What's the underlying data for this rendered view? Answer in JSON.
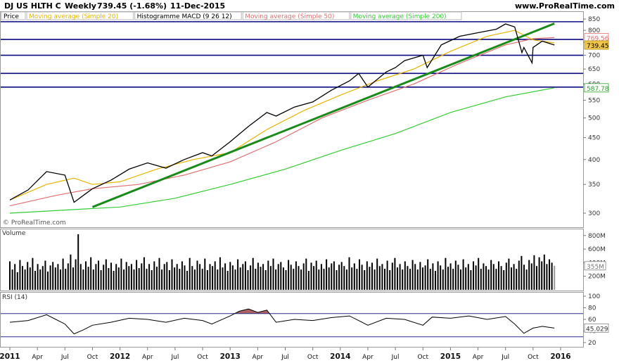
{
  "header": {
    "instrument": "DJ US HLTH C",
    "period": "Weekly",
    "last": "739.45 (-1.68%)",
    "date": "11-Dec-2015",
    "site": "www.ProRealTime.com"
  },
  "legend": [
    {
      "label": "Price",
      "color": "#000000"
    },
    {
      "label": "Moving average (Simple 20)",
      "color": "#e8b400"
    },
    {
      "label": "Histogramme MACD (9 26 12)",
      "color": "#000000"
    },
    {
      "label": "Moving average (Simple 50)",
      "color": "#e07070"
    },
    {
      "label": "Moving average (Simple 200)",
      "color": "#33cc33"
    }
  ],
  "watermark": "© ProRealTime.com",
  "panels": {
    "volume_label": "Volume",
    "rsi_label": "RSI (14)"
  },
  "colors": {
    "price": "#000000",
    "ma20": "#e8b400",
    "ma50": "#e07070",
    "ma200": "#33cc33",
    "trendline": "#1a8a1a",
    "hlines": "#0a0a80",
    "volume": "#000000",
    "rsi": "#000000",
    "rsi_fill": "#a04848"
  },
  "chart_data": [
    {
      "type": "line",
      "name": "price",
      "scale": "log",
      "ylim": [
        290,
        860
      ],
      "price_ticks": [
        300,
        350,
        400,
        450,
        500,
        550,
        600,
        650,
        700,
        750,
        800,
        850
      ],
      "x_ticks": [
        "2011",
        "Apr",
        "Jul",
        "Oct",
        "2012",
        "Apr",
        "Jul",
        "Oct",
        "2013",
        "Apr",
        "Jul",
        "Oct",
        "2014",
        "Apr",
        "Jul",
        "Oct",
        "2015",
        "Apr",
        "Jul",
        "Oct",
        "2016"
      ],
      "x_bold": [
        "2011",
        "2012",
        "2013",
        "2014",
        "2015",
        "2016"
      ],
      "path": [
        {
          "date": "2011-01",
          "value": 322
        },
        {
          "date": "2011-03",
          "value": 340
        },
        {
          "date": "2011-05",
          "value": 375
        },
        {
          "date": "2011-07",
          "value": 368
        },
        {
          "date": "2011-08",
          "value": 318
        },
        {
          "date": "2011-09",
          "value": 330
        },
        {
          "date": "2011-10",
          "value": 342
        },
        {
          "date": "2011-12",
          "value": 358
        },
        {
          "date": "2012-02",
          "value": 380
        },
        {
          "date": "2012-04",
          "value": 393
        },
        {
          "date": "2012-06",
          "value": 382
        },
        {
          "date": "2012-08",
          "value": 400
        },
        {
          "date": "2012-10",
          "value": 415
        },
        {
          "date": "2012-11",
          "value": 408
        },
        {
          "date": "2013-01",
          "value": 440
        },
        {
          "date": "2013-03",
          "value": 478
        },
        {
          "date": "2013-05",
          "value": 515
        },
        {
          "date": "2013-06",
          "value": 505
        },
        {
          "date": "2013-08",
          "value": 530
        },
        {
          "date": "2013-10",
          "value": 545
        },
        {
          "date": "2013-12",
          "value": 580
        },
        {
          "date": "2014-02",
          "value": 610
        },
        {
          "date": "2014-03",
          "value": 635
        },
        {
          "date": "2014-04",
          "value": 590
        },
        {
          "date": "2014-06",
          "value": 640
        },
        {
          "date": "2014-07",
          "value": 655
        },
        {
          "date": "2014-08",
          "value": 680
        },
        {
          "date": "2014-10",
          "value": 700
        },
        {
          "date": "2014-10-15",
          "value": 655
        },
        {
          "date": "2014-12",
          "value": 740
        },
        {
          "date": "2015-02",
          "value": 775
        },
        {
          "date": "2015-04",
          "value": 790
        },
        {
          "date": "2015-06",
          "value": 805
        },
        {
          "date": "2015-07",
          "value": 828
        },
        {
          "date": "2015-08",
          "value": 815
        },
        {
          "date": "2015-08-25",
          "value": 710
        },
        {
          "date": "2015-09",
          "value": 730
        },
        {
          "date": "2015-09-28",
          "value": 672
        },
        {
          "date": "2015-10",
          "value": 730
        },
        {
          "date": "2015-11",
          "value": 755
        },
        {
          "date": "2015-12-11",
          "value": 739.45
        }
      ],
      "ma20_path": [
        {
          "date": "2011-01",
          "value": 322
        },
        {
          "date": "2011-05",
          "value": 350
        },
        {
          "date": "2011-08",
          "value": 362
        },
        {
          "date": "2011-10",
          "value": 350
        },
        {
          "date": "2012-01",
          "value": 355
        },
        {
          "date": "2012-05",
          "value": 380
        },
        {
          "date": "2012-09",
          "value": 400
        },
        {
          "date": "2013-01",
          "value": 415
        },
        {
          "date": "2013-05",
          "value": 470
        },
        {
          "date": "2013-09",
          "value": 520
        },
        {
          "date": "2014-01",
          "value": 565
        },
        {
          "date": "2014-05",
          "value": 610
        },
        {
          "date": "2014-09",
          "value": 650
        },
        {
          "date": "2015-01",
          "value": 715
        },
        {
          "date": "2015-05",
          "value": 775
        },
        {
          "date": "2015-08",
          "value": 800
        },
        {
          "date": "2015-10",
          "value": 760
        },
        {
          "date": "2015-12-11",
          "value": 748
        }
      ],
      "ma50_path": [
        {
          "date": "2011-01",
          "value": 312
        },
        {
          "date": "2011-06",
          "value": 330
        },
        {
          "date": "2011-10",
          "value": 342
        },
        {
          "date": "2012-03",
          "value": 350
        },
        {
          "date": "2012-08",
          "value": 368
        },
        {
          "date": "2013-01",
          "value": 395
        },
        {
          "date": "2013-06",
          "value": 440
        },
        {
          "date": "2013-11",
          "value": 500
        },
        {
          "date": "2014-04",
          "value": 550
        },
        {
          "date": "2014-09",
          "value": 600
        },
        {
          "date": "2015-02",
          "value": 670
        },
        {
          "date": "2015-07",
          "value": 740
        },
        {
          "date": "2015-10",
          "value": 765
        },
        {
          "date": "2015-12-11",
          "value": 769.56
        }
      ],
      "ma200_path": [
        {
          "date": "2011-01",
          "value": 300
        },
        {
          "date": "2011-07",
          "value": 305
        },
        {
          "date": "2012-01",
          "value": 310
        },
        {
          "date": "2012-07",
          "value": 325
        },
        {
          "date": "2013-01",
          "value": 350
        },
        {
          "date": "2013-07",
          "value": 380
        },
        {
          "date": "2014-01",
          "value": 420
        },
        {
          "date": "2014-07",
          "value": 460
        },
        {
          "date": "2015-01",
          "value": 515
        },
        {
          "date": "2015-07",
          "value": 560
        },
        {
          "date": "2015-12-11",
          "value": 587.78
        }
      ],
      "trendline": [
        {
          "date": "2011-10",
          "value": 310
        },
        {
          "date": "2015-12-11",
          "value": 830
        }
      ],
      "horizontal_levels": [
        838,
        762,
        700,
        635,
        590
      ],
      "value_labels": [
        {
          "text": "769.56",
          "value": 769.56,
          "series": "ma50"
        },
        {
          "text": "739.45",
          "value": 739.45,
          "series": "price"
        },
        {
          "text": "587.78",
          "value": 587.78,
          "series": "ma200"
        }
      ]
    },
    {
      "type": "bar",
      "name": "volume",
      "ylim": [
        0,
        850
      ],
      "y_ticks": [
        "800M",
        "600M",
        "400M",
        "200M"
      ],
      "last_label": "355M",
      "last_value": 355,
      "start_date": "2011-01",
      "end_date": "2015-12-11",
      "values": [
        420,
        300,
        380,
        260,
        440,
        350,
        300,
        410,
        330,
        470,
        280,
        380,
        300,
        350,
        430,
        270,
        360,
        410,
        330,
        380,
        300,
        460,
        310,
        390,
        520,
        330,
        450,
        820,
        380,
        300,
        420,
        340,
        480,
        300,
        380,
        430,
        290,
        370,
        450,
        320,
        400,
        280,
        380,
        330,
        460,
        300,
        410,
        350,
        380,
        300,
        440,
        320,
        390,
        480,
        310,
        380,
        290,
        420,
        340,
        470,
        300,
        380,
        410,
        290,
        450,
        330,
        380,
        310,
        420,
        360,
        280,
        470,
        350,
        300,
        430,
        380,
        310,
        460,
        290,
        380,
        350,
        420,
        300,
        480,
        330,
        390,
        280,
        410,
        360,
        300,
        450,
        330,
        380,
        420,
        290,
        360,
        470,
        310,
        400,
        340,
        380,
        290,
        430,
        350,
        460,
        300,
        380,
        410,
        330,
        290,
        440,
        370,
        310,
        420,
        350,
        300,
        390,
        460,
        280,
        400,
        350,
        430,
        300,
        380,
        310,
        450,
        330,
        390,
        420,
        290,
        370,
        410,
        350,
        300,
        480,
        330,
        390,
        310,
        450,
        370,
        290,
        420,
        340,
        400,
        300,
        460,
        350,
        380,
        310,
        430,
        290,
        400,
        470,
        330,
        380,
        300,
        420,
        350,
        310,
        440,
        380,
        300,
        410,
        330,
        360,
        450,
        310,
        390,
        280,
        420,
        360,
        300,
        470,
        340,
        390,
        310,
        430,
        370,
        300,
        450,
        330,
        380,
        290,
        420,
        360,
        470,
        310,
        390,
        350,
        300,
        440,
        380,
        310,
        420,
        350,
        290,
        400,
        460,
        330,
        380,
        310,
        430,
        500,
        370,
        300,
        440,
        390,
        510,
        350,
        480,
        420,
        520,
        380,
        450,
        400,
        355
      ],
      "last_color": "#9a9a9a"
    },
    {
      "type": "line",
      "name": "rsi",
      "period": 14,
      "ylim": [
        20,
        100
      ],
      "y_ticks": [
        100,
        80,
        60,
        40,
        20
      ],
      "levels": [
        70,
        30
      ],
      "last": 45.029,
      "last_label": "45.029",
      "path": [
        {
          "date": "2011-01",
          "value": 55
        },
        {
          "date": "2011-03",
          "value": 58
        },
        {
          "date": "2011-05",
          "value": 68
        },
        {
          "date": "2011-06",
          "value": 60
        },
        {
          "date": "2011-07",
          "value": 52
        },
        {
          "date": "2011-08",
          "value": 35
        },
        {
          "date": "2011-09",
          "value": 42
        },
        {
          "date": "2011-10",
          "value": 50
        },
        {
          "date": "2011-12",
          "value": 55
        },
        {
          "date": "2012-02",
          "value": 62
        },
        {
          "date": "2012-04",
          "value": 60
        },
        {
          "date": "2012-06",
          "value": 55
        },
        {
          "date": "2012-08",
          "value": 62
        },
        {
          "date": "2012-10",
          "value": 58
        },
        {
          "date": "2012-11",
          "value": 52
        },
        {
          "date": "2013-01",
          "value": 66
        },
        {
          "date": "2013-02",
          "value": 74
        },
        {
          "date": "2013-03",
          "value": 78
        },
        {
          "date": "2013-04",
          "value": 72
        },
        {
          "date": "2013-05",
          "value": 76
        },
        {
          "date": "2013-06",
          "value": 55
        },
        {
          "date": "2013-08",
          "value": 60
        },
        {
          "date": "2013-10",
          "value": 58
        },
        {
          "date": "2013-12",
          "value": 63
        },
        {
          "date": "2014-02",
          "value": 66
        },
        {
          "date": "2014-04",
          "value": 50
        },
        {
          "date": "2014-06",
          "value": 62
        },
        {
          "date": "2014-08",
          "value": 60
        },
        {
          "date": "2014-10",
          "value": 50
        },
        {
          "date": "2014-11",
          "value": 64
        },
        {
          "date": "2015-01",
          "value": 62
        },
        {
          "date": "2015-03",
          "value": 66
        },
        {
          "date": "2015-05",
          "value": 60
        },
        {
          "date": "2015-07",
          "value": 65
        },
        {
          "date": "2015-08",
          "value": 52
        },
        {
          "date": "2015-09",
          "value": 36
        },
        {
          "date": "2015-10",
          "value": 45
        },
        {
          "date": "2015-11",
          "value": 48
        },
        {
          "date": "2015-12-11",
          "value": 45.029
        }
      ]
    }
  ]
}
